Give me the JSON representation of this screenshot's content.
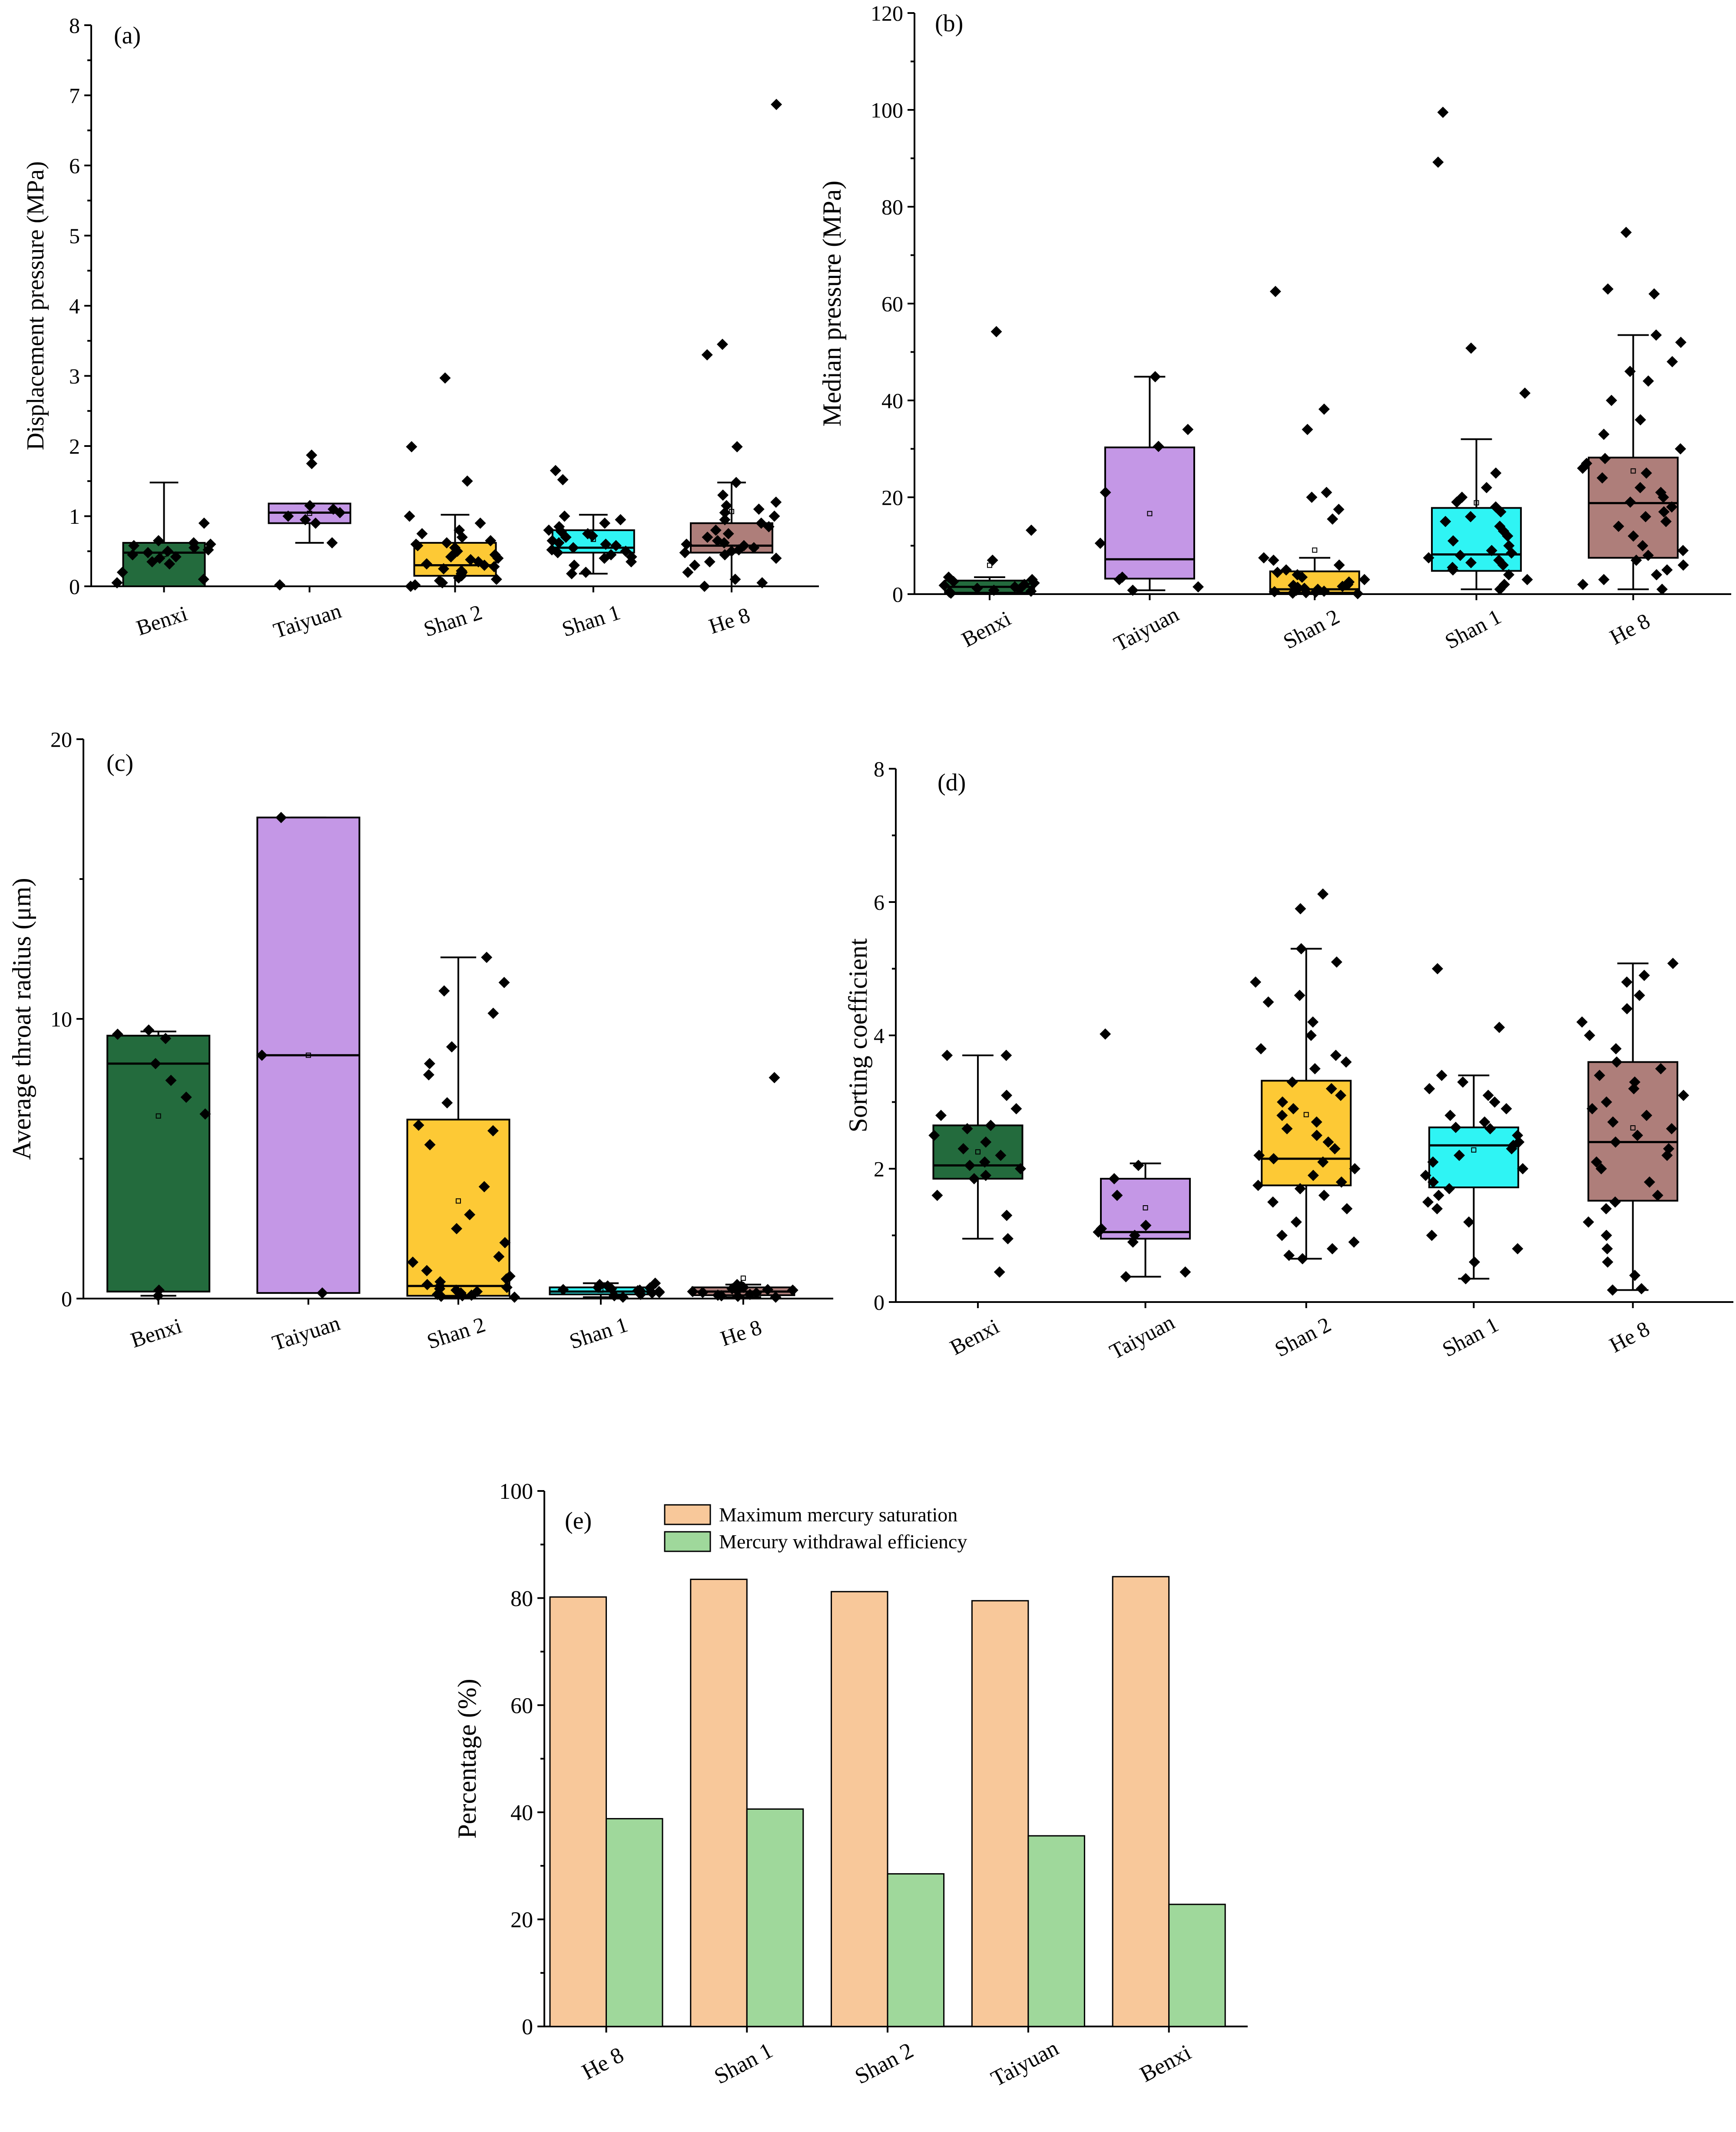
{
  "chart_data": [
    {
      "panel": "(a)",
      "type": "box",
      "ylabel": "Displacement pressure (MPa)",
      "ylim": [
        0,
        8
      ],
      "yticks": [
        0,
        1,
        2,
        3,
        4,
        5,
        6,
        7,
        8
      ],
      "categories": [
        "Benxi",
        "Taiyuan",
        "Shan 2",
        "Shan 1",
        "He 8"
      ],
      "boxes": [
        {
          "name": "Benxi",
          "color": "#236b3d",
          "min": 0.0,
          "q1": 0.0,
          "median": 0.48,
          "q3": 0.62,
          "max": 1.48,
          "points": [
            0.05,
            0.1,
            0.2,
            0.32,
            0.35,
            0.4,
            0.42,
            0.45,
            0.48,
            0.5,
            0.52,
            0.55,
            0.58,
            0.6,
            0.62,
            0.65,
            0.9
          ]
        },
        {
          "name": "Taiyuan",
          "color": "#c497e6",
          "min": 0.62,
          "q1": 0.9,
          "median": 1.05,
          "q3": 1.18,
          "max": 1.18,
          "points": [
            0.02,
            0.62,
            0.9,
            0.95,
            1.0,
            1.05,
            1.1,
            1.15,
            1.75,
            1.87
          ]
        },
        {
          "name": "Shan 2",
          "color": "#fdc935",
          "min": 0.0,
          "q1": 0.15,
          "median": 0.3,
          "q3": 0.62,
          "max": 1.02,
          "points": [
            0.0,
            0.02,
            0.05,
            0.08,
            0.1,
            0.12,
            0.15,
            0.18,
            0.2,
            0.22,
            0.25,
            0.28,
            0.3,
            0.32,
            0.35,
            0.38,
            0.4,
            0.42,
            0.45,
            0.48,
            0.5,
            0.55,
            0.58,
            0.6,
            0.62,
            0.65,
            0.7,
            0.75,
            0.8,
            0.9,
            1.0,
            1.5,
            1.99,
            2.97
          ]
        },
        {
          "name": "Shan 1",
          "color": "#2ff4f4",
          "min": 0.18,
          "q1": 0.48,
          "median": 0.55,
          "q3": 0.8,
          "max": 1.02,
          "points": [
            0.18,
            0.2,
            0.3,
            0.35,
            0.4,
            0.42,
            0.45,
            0.48,
            0.5,
            0.52,
            0.55,
            0.58,
            0.6,
            0.62,
            0.65,
            0.7,
            0.72,
            0.75,
            0.78,
            0.8,
            0.85,
            0.9,
            0.95,
            1.0,
            1.52,
            1.65
          ]
        },
        {
          "name": "He 8",
          "color": "#ae7e7a",
          "min": 0.0,
          "q1": 0.48,
          "median": 0.58,
          "q3": 0.9,
          "max": 1.48,
          "points": [
            0.0,
            0.05,
            0.1,
            0.2,
            0.3,
            0.35,
            0.4,
            0.45,
            0.48,
            0.5,
            0.52,
            0.55,
            0.58,
            0.6,
            0.62,
            0.65,
            0.7,
            0.75,
            0.8,
            0.85,
            0.9,
            0.95,
            1.0,
            1.05,
            1.1,
            1.15,
            1.2,
            1.3,
            1.48,
            1.99,
            3.3,
            3.45,
            6.87
          ]
        }
      ]
    },
    {
      "panel": "(b)",
      "type": "box",
      "ylabel": "Median pressure (MPa)",
      "ylim": [
        0,
        120
      ],
      "yticks": [
        0,
        20,
        40,
        60,
        80,
        100,
        120
      ],
      "categories": [
        "Benxi",
        "Taiyuan",
        "Shan 2",
        "Shan 1",
        "He 8"
      ],
      "boxes": [
        {
          "name": "Benxi",
          "color": "#236b3d",
          "min": 0.2,
          "q1": 0.3,
          "median": 1.5,
          "q3": 2.8,
          "max": 3.5,
          "points": [
            0.2,
            0.4,
            0.6,
            0.8,
            1.0,
            1.2,
            1.5,
            1.8,
            2.0,
            2.3,
            2.6,
            3.0,
            3.5,
            7.0,
            13.2,
            54.2
          ]
        },
        {
          "name": "Taiyuan",
          "color": "#c497e6",
          "min": 0.8,
          "q1": 3.2,
          "median": 7.2,
          "q3": 30.3,
          "max": 44.9,
          "points": [
            0.8,
            1.5,
            3.0,
            3.5,
            10.5,
            21.0,
            30.5,
            34.0,
            44.9
          ]
        },
        {
          "name": "Shan 2",
          "color": "#fdc935",
          "min": 0.0,
          "q1": 0.3,
          "median": 1.0,
          "q3": 4.7,
          "max": 7.5,
          "points": [
            0.1,
            0.2,
            0.3,
            0.4,
            0.5,
            0.6,
            0.8,
            1.0,
            1.2,
            1.4,
            1.6,
            1.8,
            2.0,
            2.5,
            3.0,
            3.5,
            4.0,
            4.5,
            5.0,
            6.0,
            7.0,
            7.5,
            15.5,
            17.5,
            20.0,
            21.0,
            34.0,
            38.2,
            62.5
          ]
        },
        {
          "name": "Shan 1",
          "color": "#2ff4f4",
          "min": 1.0,
          "q1": 4.8,
          "median": 8.2,
          "q3": 17.8,
          "max": 32.0,
          "points": [
            1.0,
            2.0,
            3.0,
            4.0,
            5.0,
            5.5,
            6.0,
            6.5,
            7.0,
            7.5,
            8.0,
            8.5,
            9.0,
            10.0,
            11.0,
            12.0,
            13.0,
            14.0,
            15.0,
            16.0,
            17.0,
            18.0,
            19.0,
            20.0,
            22.0,
            25.0,
            41.5,
            50.8,
            89.2,
            99.5
          ]
        },
        {
          "name": "He 8",
          "color": "#ae7e7a",
          "min": 1.0,
          "q1": 7.5,
          "median": 18.8,
          "q3": 28.2,
          "max": 53.5,
          "points": [
            1.0,
            2.0,
            3.0,
            4.0,
            5.0,
            6.0,
            7.0,
            8.0,
            9.0,
            10.0,
            12.0,
            14.0,
            15.0,
            16.0,
            17.0,
            18.0,
            19.0,
            20.0,
            21.0,
            22.0,
            24.0,
            25.0,
            26.0,
            27.0,
            28.0,
            30.0,
            33.0,
            36.0,
            40.0,
            44.0,
            46.0,
            48.0,
            52.0,
            53.5,
            62.0,
            63.0,
            74.7
          ]
        }
      ]
    },
    {
      "panel": "(c)",
      "type": "box",
      "ylabel": "Average throat radius (μm)",
      "ylim": [
        0,
        20
      ],
      "yticks": [
        0,
        10,
        20
      ],
      "categories": [
        "Benxi",
        "Taiyuan",
        "Shan 2",
        "Shan 1",
        "He 8"
      ],
      "boxes": [
        {
          "name": "Benxi",
          "color": "#236b3d",
          "min": 0.1,
          "q1": 0.25,
          "median": 8.4,
          "q3": 9.4,
          "max": 9.55,
          "points": [
            0.1,
            0.3,
            6.6,
            7.2,
            7.8,
            8.4,
            9.3,
            9.45,
            9.6
          ]
        },
        {
          "name": "Taiyuan",
          "color": "#c497e6",
          "min": 0.2,
          "q1": 0.2,
          "median": 8.7,
          "q3": 17.2,
          "max": 17.2,
          "points": [
            0.2,
            8.7,
            17.2
          ]
        },
        {
          "name": "Shan 2",
          "color": "#fdc935",
          "min": 0.05,
          "q1": 0.1,
          "median": 0.45,
          "q3": 6.4,
          "max": 12.2,
          "points": [
            0.05,
            0.08,
            0.1,
            0.12,
            0.15,
            0.2,
            0.25,
            0.3,
            0.35,
            0.4,
            0.45,
            0.5,
            0.6,
            0.7,
            0.8,
            1.0,
            1.3,
            1.5,
            2.0,
            2.5,
            3.0,
            4.0,
            5.5,
            6.0,
            6.2,
            7.0,
            8.0,
            8.4,
            9.0,
            10.2,
            11.0,
            11.3,
            12.2
          ]
        },
        {
          "name": "Shan 1",
          "color": "#2ff4f4",
          "min": 0.05,
          "q1": 0.15,
          "median": 0.25,
          "q3": 0.4,
          "max": 0.55,
          "points": [
            0.05,
            0.1,
            0.15,
            0.2,
            0.22,
            0.25,
            0.28,
            0.3,
            0.32,
            0.35,
            0.38,
            0.4,
            0.45,
            0.5,
            0.55
          ]
        },
        {
          "name": "He 8",
          "color": "#ae7e7a",
          "min": 0.05,
          "q1": 0.12,
          "median": 0.25,
          "q3": 0.4,
          "max": 0.5,
          "points": [
            0.05,
            0.08,
            0.1,
            0.12,
            0.15,
            0.2,
            0.22,
            0.25,
            0.28,
            0.3,
            0.32,
            0.35,
            0.4,
            0.45,
            0.5,
            7.9
          ]
        }
      ]
    },
    {
      "panel": "(d)",
      "type": "box",
      "ylabel": "Sorting coefficient",
      "ylim": [
        0,
        8
      ],
      "yticks": [
        0,
        2,
        4,
        6,
        8
      ],
      "categories": [
        "Benxi",
        "Taiyuan",
        "Shan 2",
        "Shan 1",
        "He 8"
      ],
      "boxes": [
        {
          "name": "Benxi",
          "color": "#236b3d",
          "min": 0.95,
          "q1": 1.85,
          "median": 2.05,
          "q3": 2.65,
          "max": 3.7,
          "points": [
            0.45,
            0.95,
            1.3,
            1.6,
            1.85,
            1.9,
            2.0,
            2.05,
            2.1,
            2.2,
            2.3,
            2.4,
            2.5,
            2.6,
            2.65,
            2.8,
            2.9,
            3.1,
            3.7,
            3.7
          ]
        },
        {
          "name": "Taiyuan",
          "color": "#c497e6",
          "min": 0.38,
          "q1": 0.95,
          "median": 1.05,
          "q3": 1.85,
          "max": 2.08,
          "points": [
            0.38,
            0.45,
            0.9,
            1.0,
            1.05,
            1.1,
            1.15,
            1.6,
            1.85,
            2.05,
            4.02
          ]
        },
        {
          "name": "Shan 2",
          "color": "#fdc935",
          "min": 0.65,
          "q1": 1.75,
          "median": 2.15,
          "q3": 3.32,
          "max": 5.3,
          "points": [
            0.65,
            0.7,
            0.8,
            0.9,
            1.0,
            1.2,
            1.4,
            1.5,
            1.6,
            1.7,
            1.75,
            1.8,
            1.9,
            2.0,
            2.1,
            2.15,
            2.2,
            2.3,
            2.4,
            2.5,
            2.6,
            2.7,
            2.8,
            2.9,
            3.0,
            3.1,
            3.2,
            3.3,
            3.5,
            3.6,
            3.7,
            3.8,
            4.0,
            4.2,
            4.5,
            4.6,
            4.8,
            5.1,
            5.3,
            5.9,
            6.12
          ]
        },
        {
          "name": "Shan 1",
          "color": "#2ff4f4",
          "min": 0.35,
          "q1": 1.72,
          "median": 2.35,
          "q3": 2.62,
          "max": 3.4,
          "points": [
            0.35,
            0.6,
            0.8,
            1.0,
            1.2,
            1.4,
            1.5,
            1.6,
            1.7,
            1.8,
            1.9,
            2.0,
            2.1,
            2.2,
            2.3,
            2.35,
            2.4,
            2.5,
            2.6,
            2.62,
            2.7,
            2.8,
            2.9,
            3.0,
            3.1,
            3.2,
            3.3,
            3.4,
            4.12,
            5.0
          ]
        },
        {
          "name": "He 8",
          "color": "#ae7e7a",
          "min": 0.18,
          "q1": 1.52,
          "median": 2.4,
          "q3": 3.6,
          "max": 5.08,
          "points": [
            0.18,
            0.2,
            0.4,
            0.6,
            0.8,
            1.0,
            1.2,
            1.4,
            1.5,
            1.6,
            1.8,
            2.0,
            2.1,
            2.2,
            2.3,
            2.4,
            2.5,
            2.6,
            2.7,
            2.8,
            2.9,
            3.0,
            3.1,
            3.2,
            3.3,
            3.4,
            3.5,
            3.6,
            3.8,
            4.0,
            4.2,
            4.4,
            4.6,
            4.8,
            4.9,
            5.08
          ]
        }
      ]
    },
    {
      "panel": "(e)",
      "type": "bar",
      "ylabel": "Percentage (%)",
      "ylim": [
        0,
        100
      ],
      "yticks": [
        0,
        20,
        40,
        60,
        80,
        100
      ],
      "categories": [
        "He 8",
        "Shan 1",
        "Shan 2",
        "Taiyuan",
        "Benxi"
      ],
      "series": [
        {
          "name": "Maximum mercury saturation",
          "color": "#f8c89a",
          "values": [
            80.2,
            83.5,
            81.2,
            79.5,
            84.0
          ]
        },
        {
          "name": "Mercury withdrawal efficiency",
          "color": "#9fd89b",
          "values": [
            38.8,
            40.6,
            28.5,
            35.6,
            22.8
          ]
        }
      ],
      "legend": "top-left"
    }
  ]
}
